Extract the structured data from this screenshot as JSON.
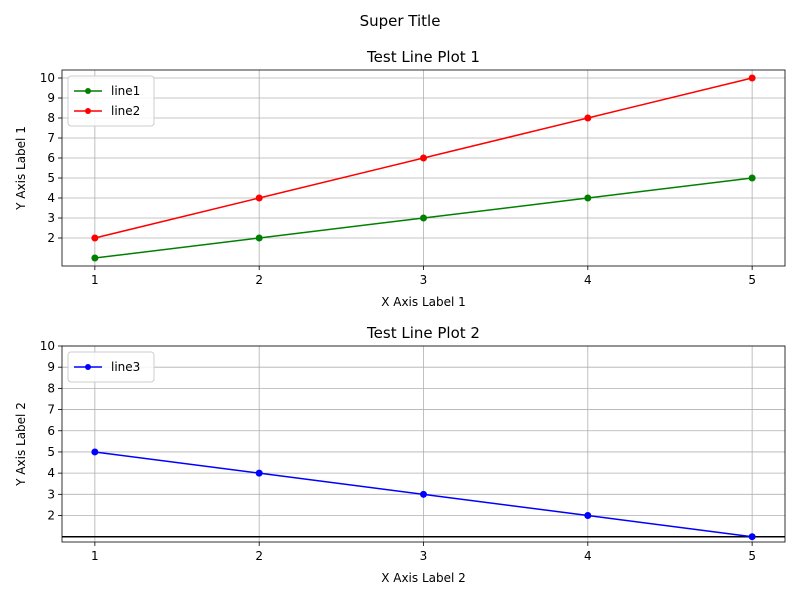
{
  "suptitle": "Super Title",
  "chart_data": [
    {
      "type": "line",
      "title": "Test Line Plot 1",
      "xlabel": "X Axis Label 1",
      "ylabel": "Y Axis Label 1",
      "xlim": [
        0.8,
        5.2
      ],
      "ylim": [
        0.6,
        10.4
      ],
      "xticks": [
        1,
        2,
        3,
        4,
        5
      ],
      "yticks": [
        2,
        3,
        4,
        5,
        6,
        7,
        8,
        9,
        10
      ],
      "grid": true,
      "legend_position": "upper-left",
      "hline": null,
      "series": [
        {
          "name": "line1",
          "color": "#008000",
          "marker": "circle",
          "x": [
            1,
            2,
            3,
            4,
            5
          ],
          "y": [
            1,
            2,
            3,
            4,
            5
          ]
        },
        {
          "name": "line2",
          "color": "#ff0000",
          "marker": "circle",
          "x": [
            1,
            2,
            3,
            4,
            5
          ],
          "y": [
            2,
            4,
            6,
            8,
            10
          ]
        }
      ]
    },
    {
      "type": "line",
      "title": "Test Line Plot 2",
      "xlabel": "X Axis Label 2",
      "ylabel": "Y Axis Label 2",
      "xlim": [
        0.8,
        5.2
      ],
      "ylim": [
        0.75,
        10
      ],
      "xticks": [
        1,
        2,
        3,
        4,
        5
      ],
      "yticks": [
        2,
        3,
        4,
        5,
        6,
        7,
        8,
        9,
        10
      ],
      "grid": true,
      "legend_position": "upper-left",
      "hline": 1,
      "series": [
        {
          "name": "line3",
          "color": "#0000ff",
          "marker": "circle",
          "x": [
            1,
            2,
            3,
            4,
            5
          ],
          "y": [
            5,
            4,
            3,
            2,
            1
          ]
        }
      ]
    }
  ]
}
